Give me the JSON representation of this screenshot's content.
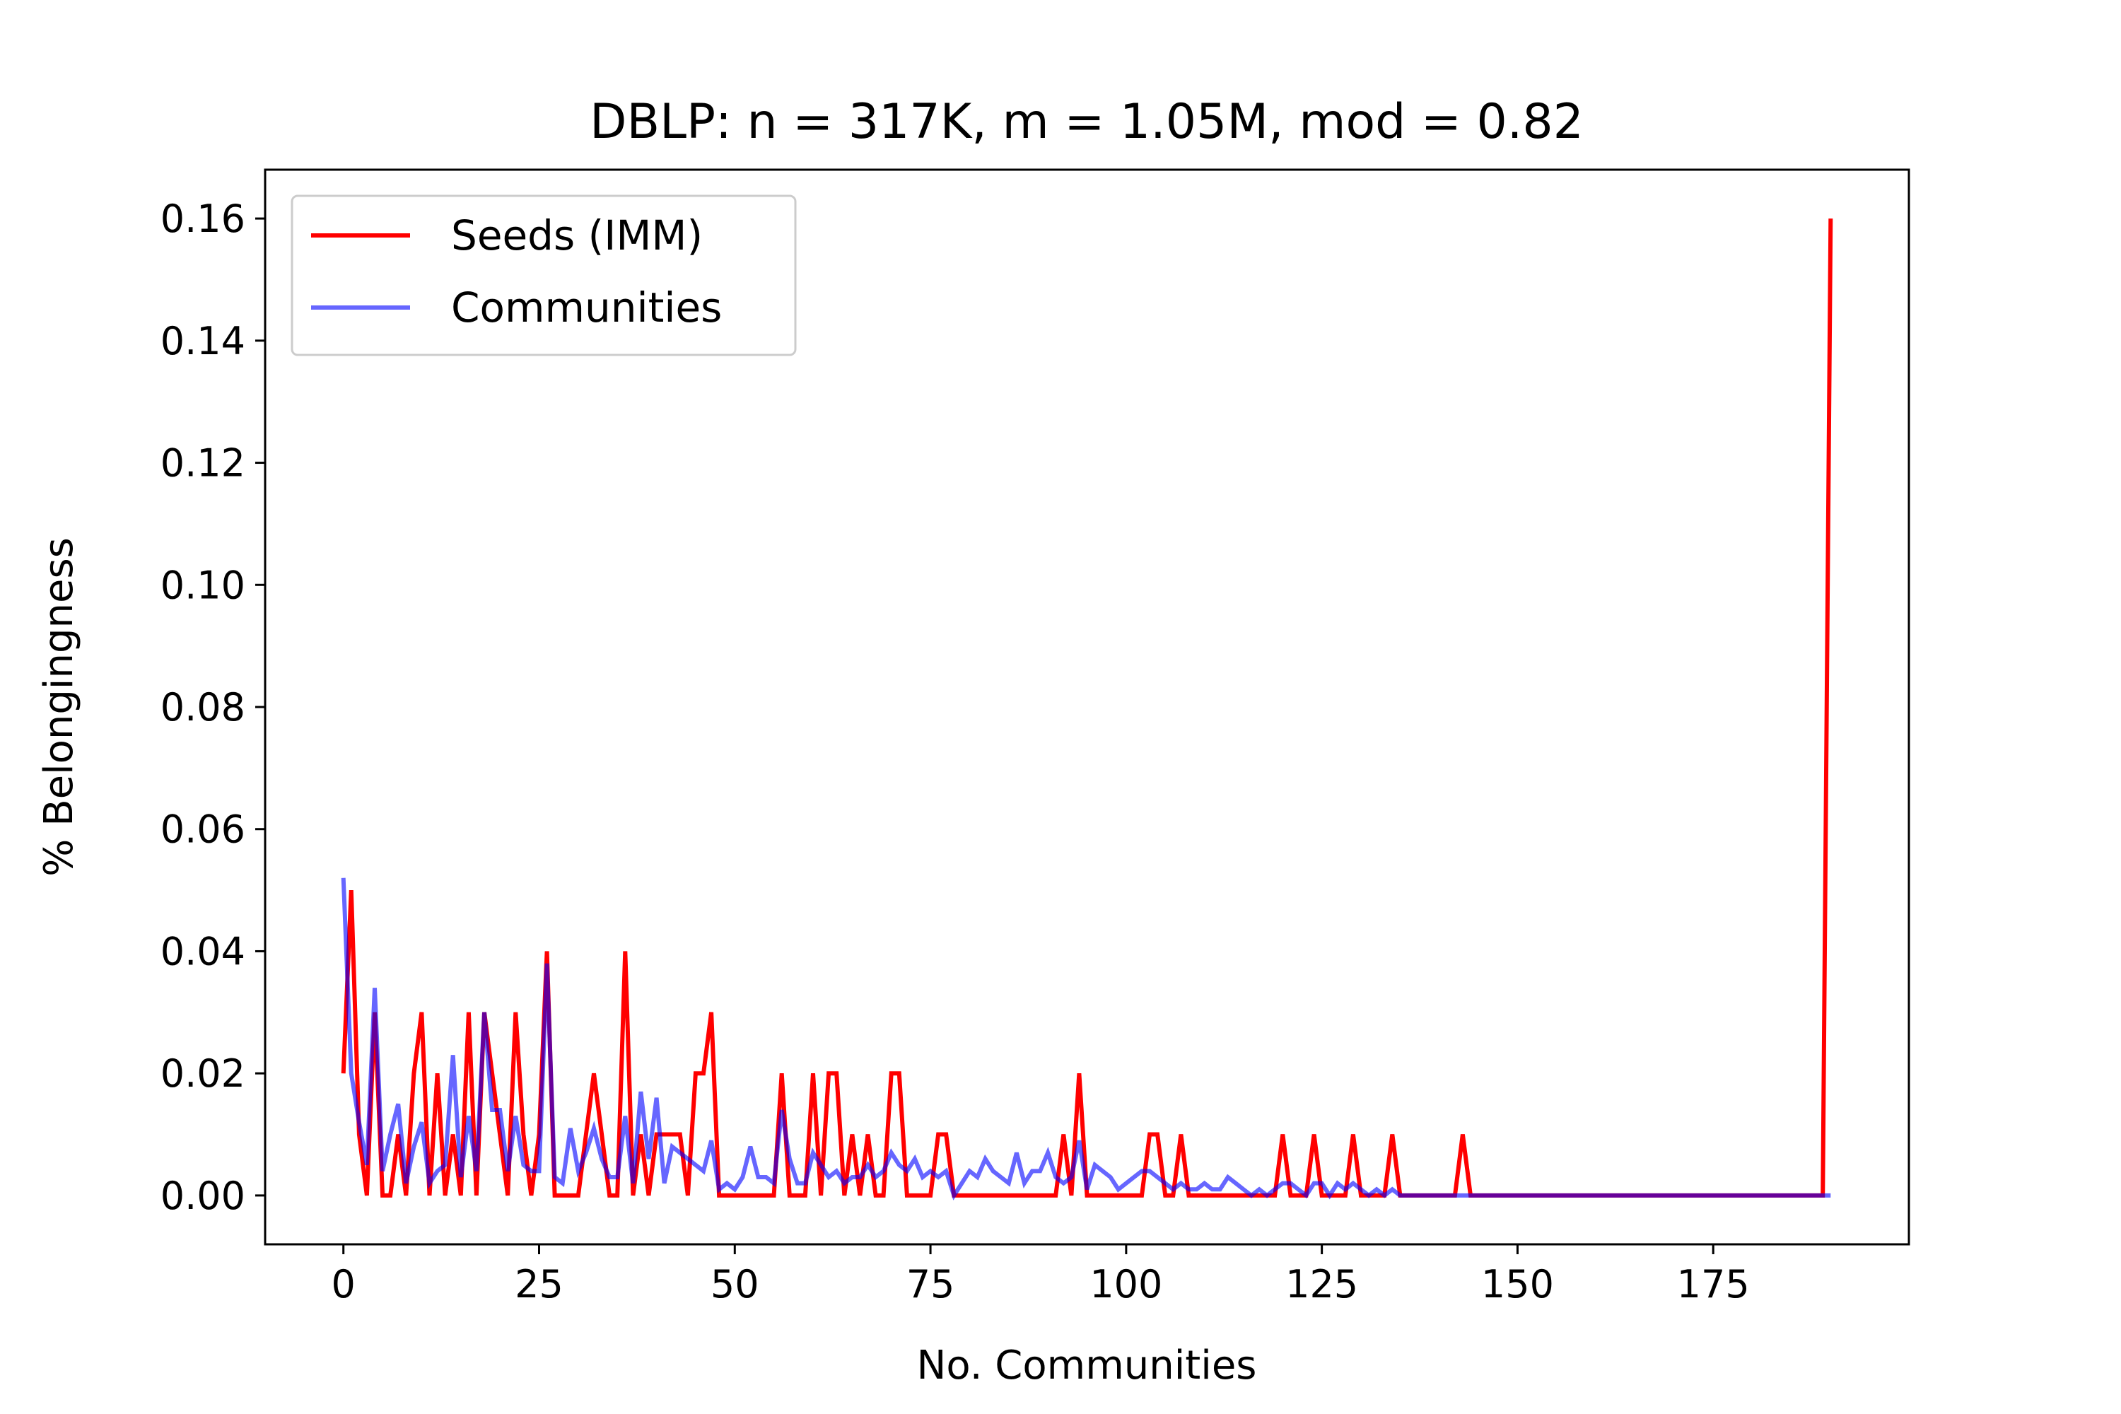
{
  "chart_data": {
    "type": "line",
    "title": "DBLP: n = 317K, m = 1.05M, mod = 0.82",
    "xlabel": "No. Communities",
    "ylabel": "% Belongingness",
    "xlim": [
      -10,
      200
    ],
    "ylim": [
      -0.008,
      0.168
    ],
    "xticks": [
      0,
      25,
      50,
      75,
      100,
      125,
      150,
      175
    ],
    "xtick_labels": [
      "0",
      "25",
      "50",
      "75",
      "100",
      "125",
      "150",
      "175"
    ],
    "yticks": [
      0.0,
      0.02,
      0.04,
      0.06,
      0.08,
      0.1,
      0.12,
      0.14,
      0.16
    ],
    "ytick_labels": [
      "0.00",
      "0.02",
      "0.04",
      "0.06",
      "0.08",
      "0.10",
      "0.12",
      "0.14",
      "0.16"
    ],
    "grid": false,
    "legend_position": "top-left",
    "series": [
      {
        "name": "Seeds (IMM)",
        "color": "#ff0000",
        "opacity": 1.0,
        "points": [
          [
            0,
            0.02
          ],
          [
            1,
            0.05
          ],
          [
            2,
            0.01
          ],
          [
            3,
            0
          ],
          [
            4,
            0.03
          ],
          [
            5,
            0
          ],
          [
            6,
            0
          ],
          [
            7,
            0.01
          ],
          [
            8,
            0
          ],
          [
            9,
            0.02
          ],
          [
            10,
            0.03
          ],
          [
            11,
            0
          ],
          [
            12,
            0.02
          ],
          [
            13,
            0
          ],
          [
            14,
            0.01
          ],
          [
            15,
            0
          ],
          [
            16,
            0.03
          ],
          [
            17,
            0
          ],
          [
            18,
            0.03
          ],
          [
            19,
            0.02
          ],
          [
            20,
            0.01
          ],
          [
            21,
            0
          ],
          [
            22,
            0.03
          ],
          [
            23,
            0.01
          ],
          [
            24,
            0
          ],
          [
            25,
            0.01
          ],
          [
            26,
            0.04
          ],
          [
            27,
            0
          ],
          [
            28,
            0
          ],
          [
            29,
            0
          ],
          [
            30,
            0
          ],
          [
            31,
            0.01
          ],
          [
            32,
            0.02
          ],
          [
            33,
            0.01
          ],
          [
            34,
            0
          ],
          [
            35,
            0
          ],
          [
            36,
            0.04
          ],
          [
            37,
            0
          ],
          [
            38,
            0.01
          ],
          [
            39,
            0
          ],
          [
            40,
            0.01
          ],
          [
            41,
            0.01
          ],
          [
            42,
            0.01
          ],
          [
            43,
            0.01
          ],
          [
            44,
            0
          ],
          [
            45,
            0.02
          ],
          [
            46,
            0.02
          ],
          [
            47,
            0.03
          ],
          [
            48,
            0
          ],
          [
            49,
            0
          ],
          [
            50,
            0
          ],
          [
            51,
            0
          ],
          [
            52,
            0
          ],
          [
            53,
            0
          ],
          [
            54,
            0
          ],
          [
            55,
            0
          ],
          [
            56,
            0.02
          ],
          [
            57,
            0
          ],
          [
            58,
            0
          ],
          [
            59,
            0
          ],
          [
            60,
            0.02
          ],
          [
            61,
            0
          ],
          [
            62,
            0.02
          ],
          [
            63,
            0.02
          ],
          [
            64,
            0
          ],
          [
            65,
            0.01
          ],
          [
            66,
            0
          ],
          [
            67,
            0.01
          ],
          [
            68,
            0
          ],
          [
            69,
            0
          ],
          [
            70,
            0.02
          ],
          [
            71,
            0.02
          ],
          [
            72,
            0
          ],
          [
            73,
            0
          ],
          [
            74,
            0
          ],
          [
            75,
            0
          ],
          [
            76,
            0.01
          ],
          [
            77,
            0.01
          ],
          [
            78,
            0
          ],
          [
            79,
            0
          ],
          [
            80,
            0
          ],
          [
            81,
            0
          ],
          [
            82,
            0
          ],
          [
            83,
            0
          ],
          [
            84,
            0
          ],
          [
            85,
            0
          ],
          [
            86,
            0
          ],
          [
            87,
            0
          ],
          [
            88,
            0
          ],
          [
            89,
            0
          ],
          [
            90,
            0
          ],
          [
            91,
            0
          ],
          [
            92,
            0.01
          ],
          [
            93,
            0
          ],
          [
            94,
            0.02
          ],
          [
            95,
            0
          ],
          [
            96,
            0
          ],
          [
            97,
            0
          ],
          [
            98,
            0
          ],
          [
            99,
            0
          ],
          [
            100,
            0
          ],
          [
            101,
            0
          ],
          [
            102,
            0
          ],
          [
            103,
            0.01
          ],
          [
            104,
            0.01
          ],
          [
            105,
            0
          ],
          [
            106,
            0
          ],
          [
            107,
            0.01
          ],
          [
            108,
            0
          ],
          [
            109,
            0
          ],
          [
            110,
            0
          ],
          [
            111,
            0
          ],
          [
            112,
            0
          ],
          [
            113,
            0
          ],
          [
            114,
            0
          ],
          [
            115,
            0
          ],
          [
            116,
            0
          ],
          [
            117,
            0
          ],
          [
            118,
            0
          ],
          [
            119,
            0
          ],
          [
            120,
            0.01
          ],
          [
            121,
            0
          ],
          [
            122,
            0
          ],
          [
            123,
            0
          ],
          [
            124,
            0.01
          ],
          [
            125,
            0
          ],
          [
            126,
            0
          ],
          [
            127,
            0
          ],
          [
            128,
            0
          ],
          [
            129,
            0.01
          ],
          [
            130,
            0
          ],
          [
            131,
            0
          ],
          [
            132,
            0
          ],
          [
            133,
            0
          ],
          [
            134,
            0.01
          ],
          [
            135,
            0
          ],
          [
            136,
            0
          ],
          [
            137,
            0
          ],
          [
            138,
            0
          ],
          [
            139,
            0
          ],
          [
            140,
            0
          ],
          [
            141,
            0
          ],
          [
            142,
            0
          ],
          [
            143,
            0.01
          ],
          [
            144,
            0
          ],
          [
            150,
            0
          ],
          [
            160,
            0
          ],
          [
            170,
            0
          ],
          [
            180,
            0
          ],
          [
            189,
            0
          ],
          [
            190,
            0.16
          ]
        ]
      },
      {
        "name": "Communities",
        "color": "#0000ff",
        "opacity": 0.6,
        "points": [
          [
            0,
            0.052
          ],
          [
            1,
            0.02
          ],
          [
            2,
            0.012
          ],
          [
            3,
            0.005
          ],
          [
            4,
            0.034
          ],
          [
            5,
            0.004
          ],
          [
            6,
            0.01
          ],
          [
            7,
            0.015
          ],
          [
            8,
            0.002
          ],
          [
            9,
            0.008
          ],
          [
            10,
            0.012
          ],
          [
            11,
            0.002
          ],
          [
            12,
            0.004
          ],
          [
            13,
            0.005
          ],
          [
            14,
            0.023
          ],
          [
            15,
            0.003
          ],
          [
            16,
            0.013
          ],
          [
            17,
            0.004
          ],
          [
            18,
            0.03
          ],
          [
            19,
            0.014
          ],
          [
            20,
            0.014
          ],
          [
            21,
            0.004
          ],
          [
            22,
            0.013
          ],
          [
            23,
            0.005
          ],
          [
            24,
            0.004
          ],
          [
            25,
            0.004
          ],
          [
            26,
            0.038
          ],
          [
            27,
            0.003
          ],
          [
            28,
            0.002
          ],
          [
            29,
            0.011
          ],
          [
            30,
            0.004
          ],
          [
            31,
            0.007
          ],
          [
            32,
            0.011
          ],
          [
            33,
            0.006
          ],
          [
            34,
            0.003
          ],
          [
            35,
            0.003
          ],
          [
            36,
            0.013
          ],
          [
            37,
            0.002
          ],
          [
            38,
            0.017
          ],
          [
            39,
            0.006
          ],
          [
            40,
            0.016
          ],
          [
            41,
            0.002
          ],
          [
            42,
            0.008
          ],
          [
            43,
            0.007
          ],
          [
            44,
            0.006
          ],
          [
            45,
            0.005
          ],
          [
            46,
            0.004
          ],
          [
            47,
            0.009
          ],
          [
            48,
            0.001
          ],
          [
            49,
            0.002
          ],
          [
            50,
            0.001
          ],
          [
            51,
            0.003
          ],
          [
            52,
            0.008
          ],
          [
            53,
            0.003
          ],
          [
            54,
            0.003
          ],
          [
            55,
            0.002
          ],
          [
            56,
            0.014
          ],
          [
            57,
            0.006
          ],
          [
            58,
            0.002
          ],
          [
            59,
            0.002
          ],
          [
            60,
            0.007
          ],
          [
            61,
            0.005
          ],
          [
            62,
            0.003
          ],
          [
            63,
            0.004
          ],
          [
            64,
            0.002
          ],
          [
            65,
            0.003
          ],
          [
            66,
            0.003
          ],
          [
            67,
            0.005
          ],
          [
            68,
            0.003
          ],
          [
            69,
            0.004
          ],
          [
            70,
            0.007
          ],
          [
            71,
            0.005
          ],
          [
            72,
            0.004
          ],
          [
            73,
            0.006
          ],
          [
            74,
            0.003
          ],
          [
            75,
            0.004
          ],
          [
            76,
            0.003
          ],
          [
            77,
            0.004
          ],
          [
            78,
            0.0
          ],
          [
            79,
            0.002
          ],
          [
            80,
            0.004
          ],
          [
            81,
            0.003
          ],
          [
            82,
            0.006
          ],
          [
            83,
            0.004
          ],
          [
            84,
            0.003
          ],
          [
            85,
            0.002
          ],
          [
            86,
            0.007
          ],
          [
            87,
            0.002
          ],
          [
            88,
            0.004
          ],
          [
            89,
            0.004
          ],
          [
            90,
            0.007
          ],
          [
            91,
            0.003
          ],
          [
            92,
            0.002
          ],
          [
            93,
            0.003
          ],
          [
            94,
            0.009
          ],
          [
            95,
            0.001
          ],
          [
            96,
            0.005
          ],
          [
            97,
            0.004
          ],
          [
            98,
            0.003
          ],
          [
            99,
            0.001
          ],
          [
            100,
            0.002
          ],
          [
            101,
            0.003
          ],
          [
            102,
            0.004
          ],
          [
            103,
            0.004
          ],
          [
            104,
            0.003
          ],
          [
            105,
            0.002
          ],
          [
            106,
            0.001
          ],
          [
            107,
            0.002
          ],
          [
            108,
            0.001
          ],
          [
            109,
            0.001
          ],
          [
            110,
            0.002
          ],
          [
            111,
            0.001
          ],
          [
            112,
            0.001
          ],
          [
            113,
            0.003
          ],
          [
            114,
            0.002
          ],
          [
            115,
            0.001
          ],
          [
            116,
            0.0
          ],
          [
            117,
            0.001
          ],
          [
            118,
            0.0
          ],
          [
            119,
            0.001
          ],
          [
            120,
            0.002
          ],
          [
            121,
            0.002
          ],
          [
            122,
            0.001
          ],
          [
            123,
            0.0
          ],
          [
            124,
            0.002
          ],
          [
            125,
            0.002
          ],
          [
            126,
            0.0
          ],
          [
            127,
            0.002
          ],
          [
            128,
            0.001
          ],
          [
            129,
            0.002
          ],
          [
            130,
            0.001
          ],
          [
            131,
            0.0
          ],
          [
            132,
            0.001
          ],
          [
            133,
            0.0
          ],
          [
            134,
            0.001
          ],
          [
            135,
            0.0
          ],
          [
            136,
            0.0
          ],
          [
            137,
            0.0
          ],
          [
            138,
            0.0
          ],
          [
            139,
            0.0
          ],
          [
            140,
            0.0
          ],
          [
            141,
            0.0
          ],
          [
            142,
            0.0
          ],
          [
            143,
            0.0
          ],
          [
            144,
            0
          ],
          [
            150,
            0
          ],
          [
            160,
            0
          ],
          [
            170,
            0
          ],
          [
            180,
            0
          ],
          [
            189,
            0
          ],
          [
            190,
            0
          ]
        ]
      }
    ]
  }
}
